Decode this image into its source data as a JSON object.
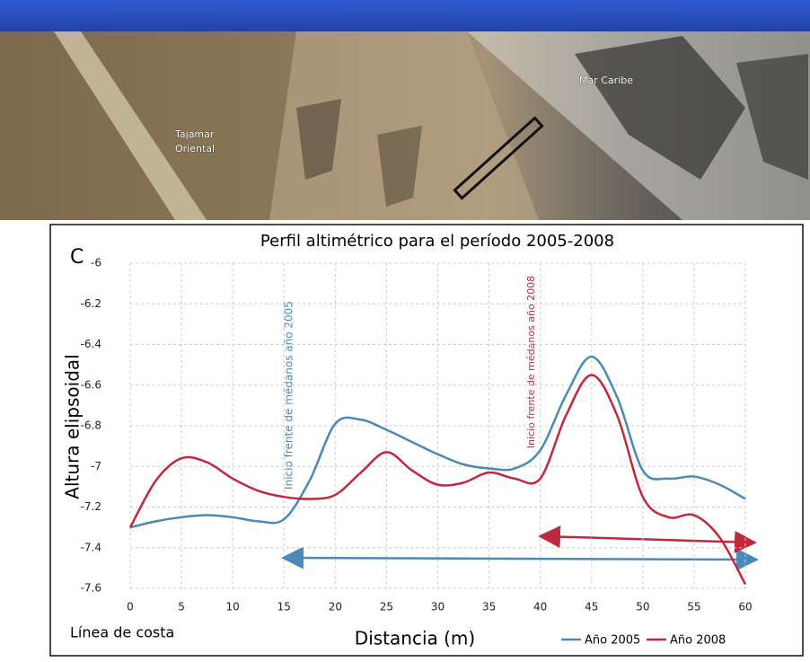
{
  "photo_labels": [
    "Tajamar",
    "Oriental",
    "Mar Caribe"
  ],
  "chart_data": {
    "type": "line",
    "panel_label": "C",
    "title": "Perfil altimétrico para el período 2005-2008",
    "x_label": "Distancia (m)",
    "y_label": "Altura elipsoidal",
    "annotations": [
      "Inicio frente de médanos año 2005",
      "Inicio frente de médanos año 2008",
      "Línea de costa"
    ],
    "x": [
      0,
      2.5,
      5,
      7.5,
      10,
      12.5,
      15,
      17.5,
      20,
      22.5,
      25,
      27.5,
      30,
      32.5,
      35,
      37.5,
      40,
      42.5,
      45,
      47.5,
      50,
      52.5,
      55,
      57.5,
      60
    ],
    "series": [
      {
        "name": "Año 2005",
        "color": "#4a8ab8",
        "values": [
          -7.3,
          -7.27,
          -7.25,
          -7.24,
          -7.25,
          -7.27,
          -7.26,
          -7.07,
          -6.79,
          -6.77,
          -6.82,
          -6.88,
          -6.94,
          -6.99,
          -7.01,
          -7.01,
          -6.92,
          -6.65,
          -6.46,
          -6.66,
          -7.02,
          -7.06,
          -7.05,
          -7.09,
          -7.16
        ]
      },
      {
        "name": "Año 2008",
        "color": "#c0283e",
        "values": [
          -7.3,
          -7.07,
          -6.96,
          -6.98,
          -7.06,
          -7.12,
          -7.15,
          -7.16,
          -7.14,
          -7.03,
          -6.93,
          -7.02,
          -7.09,
          -7.08,
          -7.03,
          -7.06,
          -7.06,
          -6.75,
          -6.55,
          -6.75,
          -7.15,
          -7.25,
          -7.24,
          -7.35,
          -7.58
        ]
      }
    ],
    "xlim": [
      0,
      60
    ],
    "xticks": [
      0,
      5,
      10,
      15,
      20,
      25,
      30,
      35,
      40,
      45,
      50,
      55,
      60
    ],
    "ylim": [
      -7.6,
      -6
    ],
    "yticks": [
      -6,
      -6.2,
      -6.4,
      -6.6,
      -6.8,
      -7,
      -7.2,
      -7.4,
      -7.6
    ],
    "grid": true,
    "legend": "bottom-right"
  }
}
